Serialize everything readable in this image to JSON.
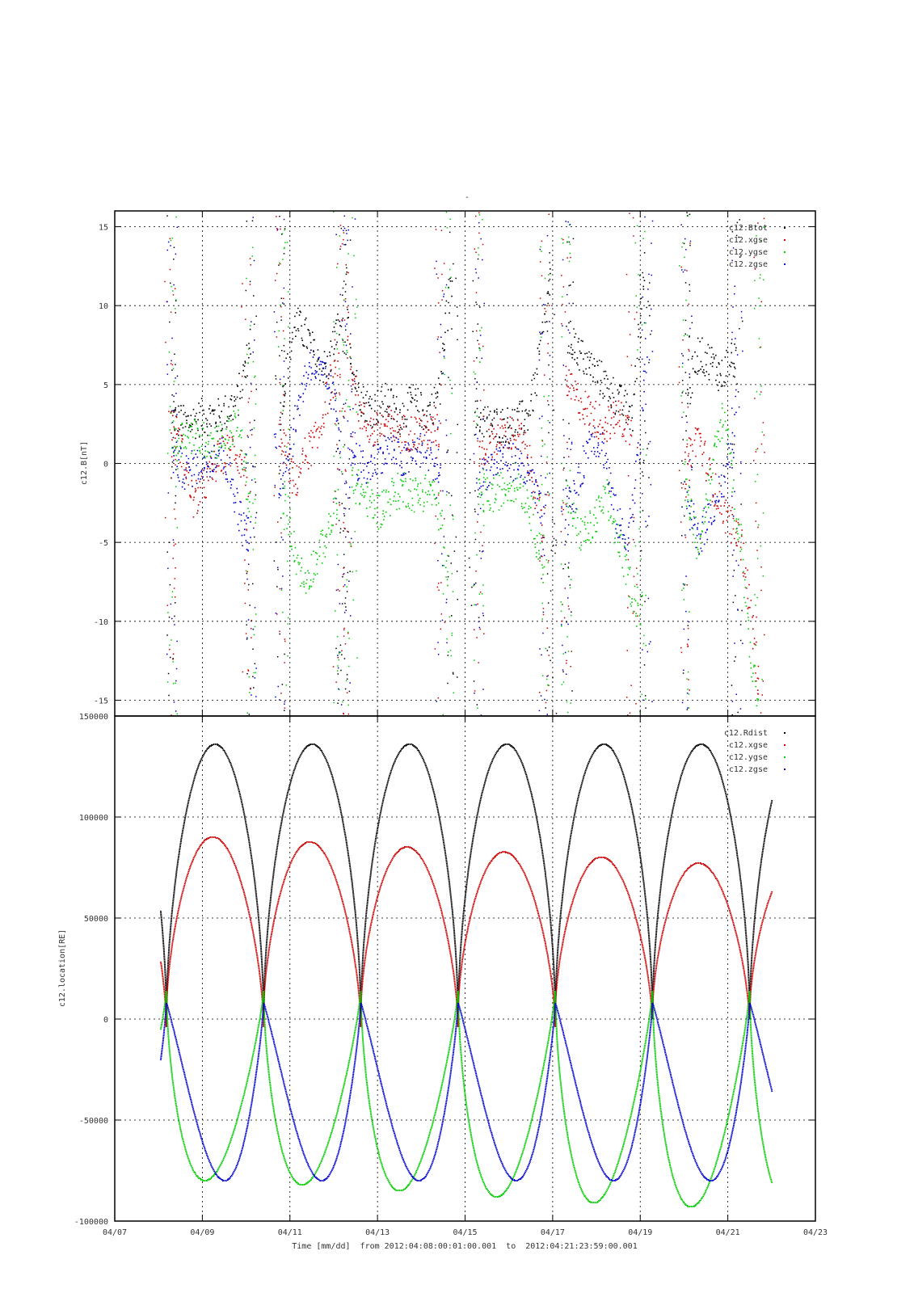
{
  "chart_data": [
    {
      "type": "scatter",
      "title": "-",
      "ylabel": "c12.B[nT]",
      "ylim": [
        -16,
        16
      ],
      "yticks": [
        -15,
        -10,
        -5,
        0,
        5,
        10,
        15
      ],
      "grid": true,
      "legend_position": "top-right",
      "series": [
        {
          "name": "c12.Btot",
          "color": "#000000",
          "segments": [
            [
              8.3,
              3.0
            ],
            [
              8.6,
              2.5
            ],
            [
              9.0,
              3.0
            ],
            [
              9.4,
              3.0
            ],
            [
              9.8,
              4.0
            ],
            [
              9.95,
              6.0
            ],
            [
              10.1,
              8.0
            ],
            [
              null,
              null
            ],
            [
              10.75,
              3.0
            ],
            [
              10.9,
              5.5
            ],
            [
              11.1,
              9.0
            ],
            [
              11.4,
              8.0
            ],
            [
              11.6,
              6.5
            ],
            [
              11.85,
              6.0
            ],
            [
              12.0,
              8.0
            ],
            [
              12.15,
              9.0
            ],
            [
              null,
              null
            ],
            [
              12.25,
              13.0
            ],
            [
              12.4,
              6.0
            ],
            [
              12.65,
              4.0
            ],
            [
              12.9,
              3.5
            ],
            [
              13.2,
              4.0
            ],
            [
              13.5,
              3.0
            ],
            [
              13.8,
              4.0
            ],
            [
              14.1,
              3.0
            ],
            [
              14.4,
              4.5
            ],
            [
              14.55,
              9.0
            ],
            [
              14.7,
              12.0
            ],
            [
              null,
              null
            ],
            [
              15.2,
              3.0
            ],
            [
              15.6,
              2.5
            ],
            [
              16.0,
              2.5
            ],
            [
              16.4,
              3.0
            ],
            [
              16.6,
              5.0
            ],
            [
              16.8,
              9.0
            ],
            [
              16.95,
              12.0
            ],
            [
              null,
              null
            ],
            [
              17.35,
              8.0
            ],
            [
              17.6,
              7.0
            ],
            [
              17.9,
              6.0
            ],
            [
              18.2,
              5.0
            ],
            [
              18.5,
              4.0
            ],
            [
              18.8,
              3.0
            ],
            [
              18.9,
              6.0
            ],
            [
              19.0,
              10.0
            ],
            [
              19.1,
              13.0
            ],
            [
              null,
              null
            ],
            [
              20.05,
              4.0
            ],
            [
              20.3,
              7.0
            ],
            [
              20.6,
              6.5
            ],
            [
              20.85,
              5.5
            ],
            [
              21.0,
              6.5
            ],
            [
              21.2,
              6.5
            ]
          ]
        },
        {
          "name": "c12.xgse",
          "color": "#cc0000",
          "segments": [
            [
              8.25,
              3.0
            ],
            [
              8.5,
              1.0
            ],
            [
              8.8,
              -2.5
            ],
            [
              9.1,
              -1.0
            ],
            [
              9.4,
              0.5
            ],
            [
              9.7,
              1.0
            ],
            [
              9.9,
              0.0
            ],
            [
              10.0,
              -1.0
            ],
            [
              null,
              null
            ],
            [
              10.75,
              2.5
            ],
            [
              10.95,
              0.0
            ],
            [
              11.1,
              -1.5
            ],
            [
              11.3,
              0.5
            ],
            [
              11.6,
              1.5
            ],
            [
              11.9,
              5.0
            ],
            [
              12.1,
              6.0
            ],
            [
              null,
              null
            ],
            [
              12.3,
              8.0
            ],
            [
              12.6,
              3.0
            ],
            [
              12.9,
              2.0
            ],
            [
              13.2,
              2.5
            ],
            [
              13.5,
              2.0
            ],
            [
              13.8,
              2.0
            ],
            [
              14.1,
              2.0
            ],
            [
              14.4,
              2.0
            ],
            [
              null,
              null
            ],
            [
              15.3,
              0.5
            ],
            [
              15.6,
              1.5
            ],
            [
              16.0,
              2.0
            ],
            [
              16.3,
              1.5
            ],
            [
              16.55,
              -1.0
            ],
            [
              16.8,
              -5.0
            ],
            [
              null,
              null
            ],
            [
              17.3,
              5.0
            ],
            [
              17.6,
              4.0
            ],
            [
              17.9,
              3.0
            ],
            [
              18.2,
              2.5
            ],
            [
              18.5,
              3.0
            ],
            [
              18.8,
              2.0
            ],
            [
              null,
              null
            ],
            [
              20.0,
              -0.5
            ],
            [
              20.3,
              2.0
            ],
            [
              20.6,
              -1.0
            ],
            [
              20.9,
              -3.0
            ],
            [
              21.1,
              -4.0
            ],
            [
              21.3,
              -5.0
            ],
            [
              21.5,
              -9.0
            ],
            [
              21.7,
              -14.0
            ]
          ]
        },
        {
          "name": "c12.ygse",
          "color": "#00cc00",
          "segments": [
            [
              8.3,
              1.0
            ],
            [
              8.6,
              2.0
            ],
            [
              9.0,
              1.5
            ],
            [
              9.4,
              1.5
            ],
            [
              9.8,
              2.5
            ],
            [
              9.95,
              0.0
            ],
            [
              10.1,
              -3.0
            ],
            [
              null,
              null
            ],
            [
              10.85,
              -2.0
            ],
            [
              11.1,
              -5.5
            ],
            [
              11.3,
              -7.5
            ],
            [
              11.6,
              -6.0
            ],
            [
              11.9,
              -4.0
            ],
            [
              12.1,
              -2.0
            ],
            [
              null,
              null
            ],
            [
              12.4,
              -1.0
            ],
            [
              12.7,
              -2.0
            ],
            [
              13.0,
              -3.0
            ],
            [
              13.3,
              -2.0
            ],
            [
              13.6,
              -1.5
            ],
            [
              13.9,
              -2.0
            ],
            [
              14.2,
              -1.5
            ],
            [
              14.45,
              -3.5
            ],
            [
              14.6,
              -9.0
            ],
            [
              null,
              null
            ],
            [
              15.3,
              -2.0
            ],
            [
              15.6,
              -2.0
            ],
            [
              15.9,
              -1.5
            ],
            [
              16.2,
              -1.0
            ],
            [
              16.5,
              -3.0
            ],
            [
              16.8,
              -7.0
            ],
            [
              null,
              null
            ],
            [
              17.3,
              -2.0
            ],
            [
              17.6,
              -4.5
            ],
            [
              17.9,
              -4.0
            ],
            [
              18.2,
              -2.0
            ],
            [
              18.5,
              -5.0
            ],
            [
              18.8,
              -8.0
            ],
            [
              19.0,
              -10.0
            ],
            [
              null,
              null
            ],
            [
              20.0,
              -1.0
            ],
            [
              20.3,
              -5.0
            ],
            [
              20.6,
              -1.0
            ],
            [
              20.85,
              3.0
            ],
            [
              21.0,
              2.0
            ],
            [
              21.15,
              -3.0
            ],
            [
              21.3,
              -5.0
            ],
            [
              21.5,
              -12.0
            ],
            [
              21.7,
              -15.0
            ]
          ]
        },
        {
          "name": "c12.zgse",
          "color": "#0000cc",
          "segments": [
            [
              8.3,
              0.5
            ],
            [
              8.6,
              -0.5
            ],
            [
              9.0,
              0.0
            ],
            [
              9.4,
              1.0
            ],
            [
              9.7,
              -1.5
            ],
            [
              9.9,
              -4.0
            ],
            [
              10.1,
              -4.5
            ],
            [
              null,
              null
            ],
            [
              10.75,
              -1.0
            ],
            [
              11.0,
              1.0
            ],
            [
              11.2,
              4.0
            ],
            [
              11.45,
              6.5
            ],
            [
              11.75,
              5.5
            ],
            [
              12.0,
              4.0
            ],
            [
              12.15,
              2.0
            ],
            [
              null,
              null
            ],
            [
              12.35,
              1.0
            ],
            [
              12.7,
              -0.5
            ],
            [
              13.0,
              0.5
            ],
            [
              13.3,
              1.0
            ],
            [
              13.6,
              0.0
            ],
            [
              13.9,
              1.0
            ],
            [
              14.2,
              0.5
            ],
            [
              14.45,
              -1.0
            ],
            [
              null,
              null
            ],
            [
              15.3,
              -1.0
            ],
            [
              15.6,
              0.0
            ],
            [
              15.9,
              0.5
            ],
            [
              16.2,
              0.0
            ],
            [
              16.5,
              -1.0
            ],
            [
              16.8,
              -4.0
            ],
            [
              null,
              null
            ],
            [
              17.3,
              -3.0
            ],
            [
              17.55,
              -1.5
            ],
            [
              17.85,
              2.0
            ],
            [
              18.15,
              1.0
            ],
            [
              18.4,
              -3.0
            ],
            [
              18.65,
              -5.0
            ],
            [
              18.85,
              -2.0
            ],
            [
              19.0,
              2.0
            ],
            [
              19.15,
              8.0
            ],
            [
              null,
              null
            ],
            [
              20.05,
              -2.0
            ],
            [
              20.3,
              -5.0
            ],
            [
              20.6,
              -3.0
            ],
            [
              20.9,
              -1.0
            ],
            [
              21.1,
              1.0
            ],
            [
              21.2,
              4.0
            ]
          ]
        }
      ]
    },
    {
      "type": "scatter",
      "ylabel": "c12.location[RE]",
      "xlabel": "Time [mm/dd]  from 2012:04:08:00:01:00.001  to  2012:04:21:23:59:00.001",
      "x_tick_labels": [
        "04/07",
        "04/09",
        "04/11",
        "04/13",
        "04/15",
        "04/17",
        "04/19",
        "04/21",
        "04/23"
      ],
      "x_ticks_day": [
        7,
        9,
        11,
        13,
        15,
        17,
        19,
        21,
        23
      ],
      "xlim_day": [
        7,
        23
      ],
      "ylim": [
        -100000,
        150000
      ],
      "yticks": [
        -100000,
        -50000,
        0,
        50000,
        100000,
        150000
      ],
      "grid": true,
      "legend_position": "top-right",
      "orbit": {
        "period_days": 2.22,
        "first_perigee_day": 8.18,
        "last_perigee_day": 21.94,
        "first_apogee_day": 9.29
      },
      "series": [
        {
          "name": "c12.Rdist",
          "color": "#000000",
          "apogee_values": [
            136000,
            136000,
            136000,
            136000,
            136000,
            136000
          ],
          "perigee_value": 0
        },
        {
          "name": "c12.xgse",
          "color": "#cc0000",
          "apogee_values": [
            90000,
            87500,
            85000,
            82500,
            80000,
            77000
          ],
          "perigee_value": 0
        },
        {
          "name": "c12.ygse",
          "color": "#00cc00",
          "min_values": [
            -80000,
            -82000,
            -85000,
            -88000,
            -91000,
            -93000
          ],
          "perigee_max": 14000
        },
        {
          "name": "c12.zgse",
          "color": "#0000cc",
          "min_values": [
            -80000,
            -80000,
            -80000,
            -80000,
            -80000,
            -80000
          ],
          "perigee_max": 8000
        }
      ]
    }
  ]
}
